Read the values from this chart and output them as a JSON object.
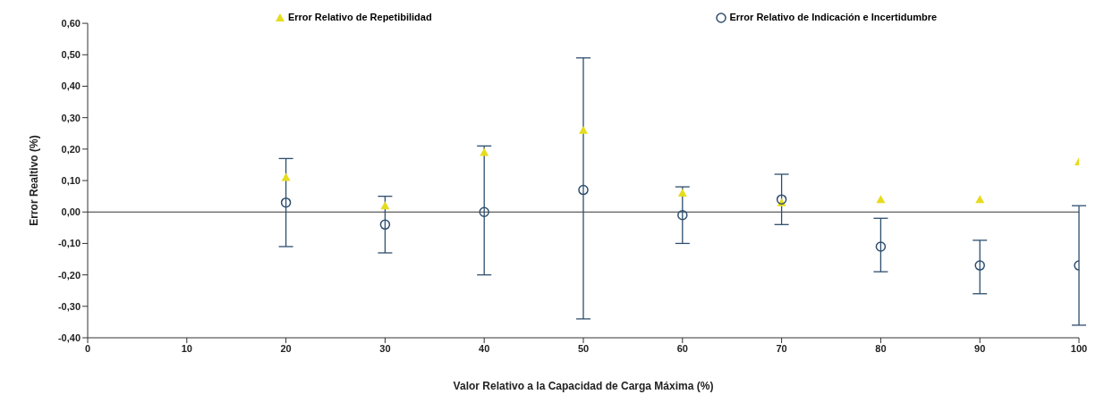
{
  "chart_data": {
    "type": "scatter",
    "xlabel": "Valor Relativo a la Capacidad de Carga Máxima (%)",
    "ylabel": "Error Realtivo (%)",
    "x": [
      20,
      30,
      40,
      50,
      60,
      70,
      80,
      90,
      100
    ],
    "series": [
      {
        "name": "Error Relativo de Repetibilidad",
        "color": "#e6dc1e",
        "marker": "triangle",
        "values": [
          0.11,
          0.02,
          0.19,
          0.26,
          0.06,
          0.03,
          0.04,
          0.04,
          0.16
        ]
      },
      {
        "name": "Error Relativo de Indicación e Incertidumbre",
        "color": "#2e4e6e",
        "marker": "circle",
        "values": [
          0.03,
          -0.04,
          0.0,
          0.07,
          -0.01,
          0.04,
          -0.11,
          -0.17,
          -0.17
        ],
        "errors": [
          [
            -0.11,
            0.17
          ],
          [
            -0.13,
            0.05
          ],
          [
            -0.2,
            0.21
          ],
          [
            -0.34,
            0.49
          ],
          [
            -0.1,
            0.08
          ],
          [
            -0.04,
            0.12
          ],
          [
            -0.19,
            -0.02
          ],
          [
            -0.26,
            -0.09
          ],
          [
            -0.36,
            0.02
          ]
        ]
      }
    ],
    "xlim": [
      0,
      100
    ],
    "xticks": [
      0,
      10,
      20,
      30,
      40,
      50,
      60,
      70,
      80,
      90,
      100
    ],
    "ylim": [
      -0.4,
      0.6
    ],
    "yticks": [
      {
        "value": -0.4,
        "label": "-0,40"
      },
      {
        "value": -0.3,
        "label": "-0,30"
      },
      {
        "value": -0.2,
        "label": "-0,20"
      },
      {
        "value": -0.1,
        "label": "-0,10"
      },
      {
        "value": 0,
        "label": "0,00"
      },
      {
        "value": 0.1,
        "label": "0,10"
      },
      {
        "value": 0.2,
        "label": "0,20"
      },
      {
        "value": 0.3,
        "label": "0,30"
      },
      {
        "value": 0.4,
        "label": "0,40"
      },
      {
        "value": 0.5,
        "label": "0,50"
      },
      {
        "value": 0.6,
        "label": "0,60"
      }
    ],
    "ref_lines": [
      {
        "axis": "y",
        "value": 0,
        "color": "#333333"
      }
    ],
    "grid": false,
    "legend": "top"
  }
}
